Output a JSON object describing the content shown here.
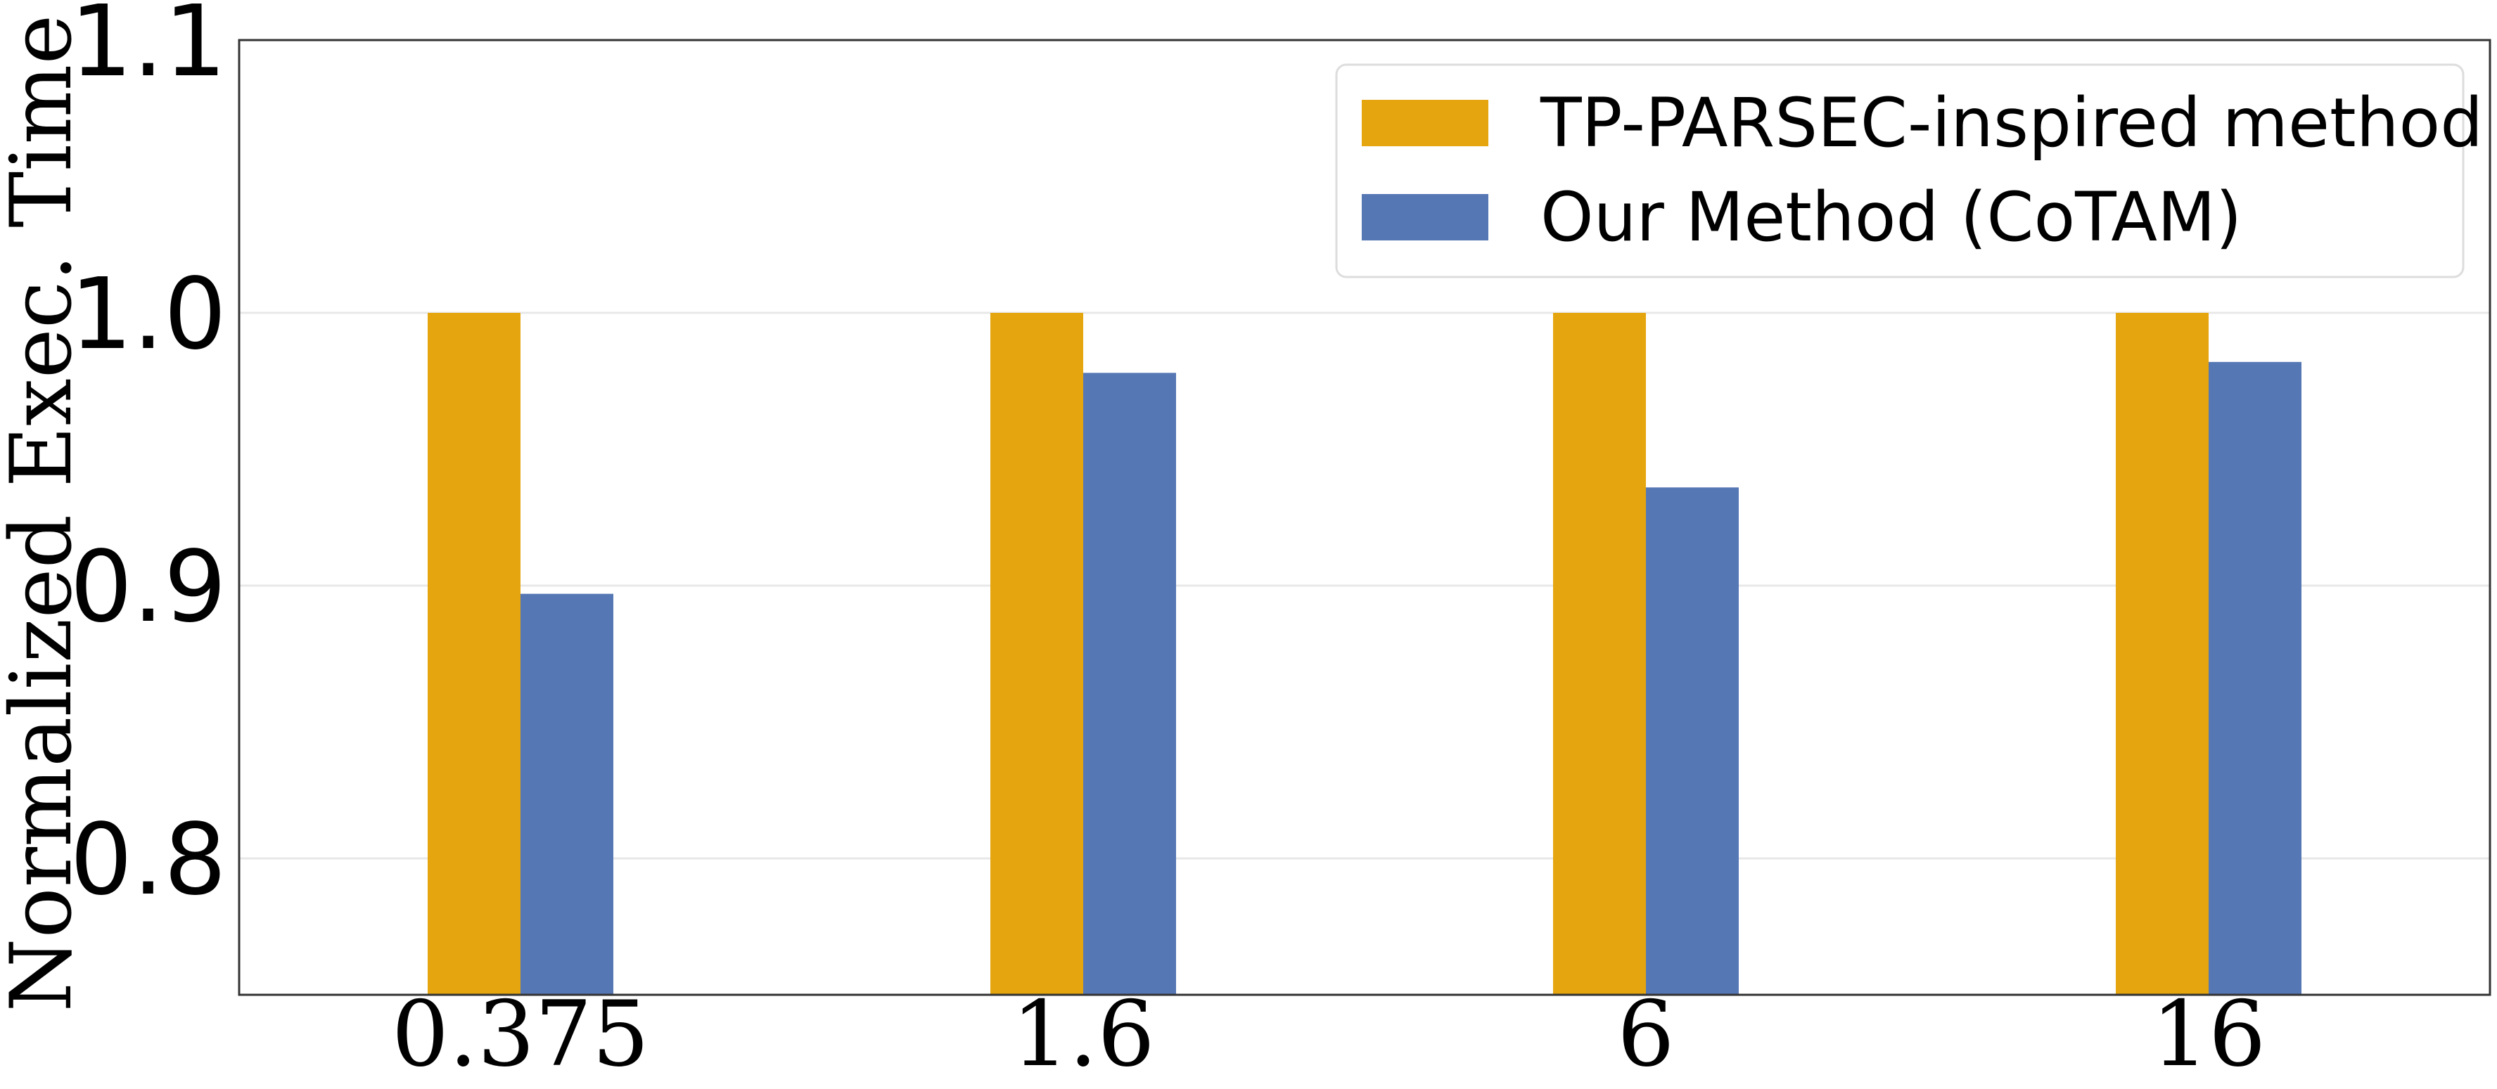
{
  "chart_data": {
    "type": "bar",
    "categories": [
      "0.375",
      "1.6",
      "6",
      "16"
    ],
    "series": [
      {
        "name": "TP-PARSEC-inspired method",
        "color": "#E5A50F",
        "values": [
          1.0,
          1.0,
          1.0,
          1.0
        ]
      },
      {
        "name": "Our Method (CoTAM)",
        "color": "#5577B4",
        "values": [
          0.897,
          0.978,
          0.936,
          0.982
        ]
      }
    ],
    "title": "",
    "xlabel": "",
    "ylabel": "Normalized Exec. Time",
    "ylim": [
      0.75,
      1.1
    ],
    "yticks": [
      "0.8",
      "0.9",
      "1.0",
      "1.1"
    ],
    "grid": "horizontal, light",
    "legend": "top-right"
  }
}
